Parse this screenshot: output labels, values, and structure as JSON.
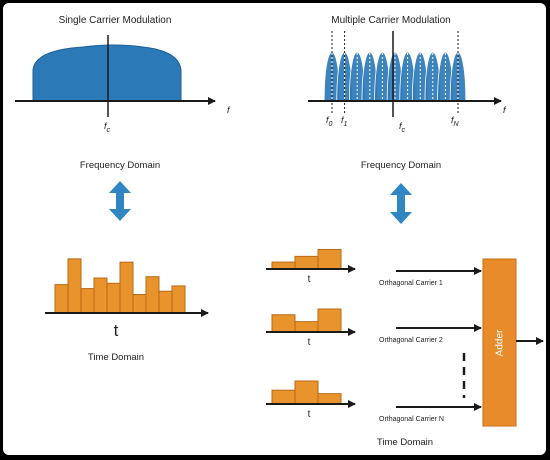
{
  "colors": {
    "spectrum_fill": "#2c79b8",
    "bar_fill": "#e8932b",
    "bar_stroke": "#b96a16",
    "arrow_blue": "#2f86c3",
    "adder_fill": "#e88b2a",
    "axis": "#1a1a1a"
  },
  "left": {
    "title": "Single Carrier Modulation",
    "freq_label": "Frequency Domain",
    "fc_label": "f",
    "fc_sub": "c",
    "f_axis_label": "f",
    "t_label": "t",
    "time_label": "Time Domain",
    "bar_heights": [
      0.43,
      0.82,
      0.37,
      0.53,
      0.45,
      0.77,
      0.28,
      0.55,
      0.33,
      0.41
    ]
  },
  "right": {
    "title": "Multiple Carrier Modulation",
    "freq_label": "Frequency Domain",
    "f0_label": "f",
    "f0_sub": "0",
    "f1_label": "f",
    "f1_sub": "1",
    "fc_label": "f",
    "fc_sub": "c",
    "fn_label": "f",
    "fn_sub": "N",
    "f_axis_label": "f",
    "subcarrier_count": 11,
    "time_label": "Time Domain",
    "adder_label": "Adder",
    "carriers": [
      {
        "label": "Orthagonal Carrier 1",
        "t_label": "t",
        "bar_heights": [
          0.3,
          0.55,
          0.85
        ]
      },
      {
        "label": "Orthagonal Carrier 2",
        "t_label": "t",
        "bar_heights": [
          0.75,
          0.45,
          1.0
        ]
      },
      {
        "label": "Orthagonal Carrier N",
        "t_label": "t",
        "bar_heights": [
          0.6,
          1.0,
          0.45
        ]
      }
    ]
  }
}
